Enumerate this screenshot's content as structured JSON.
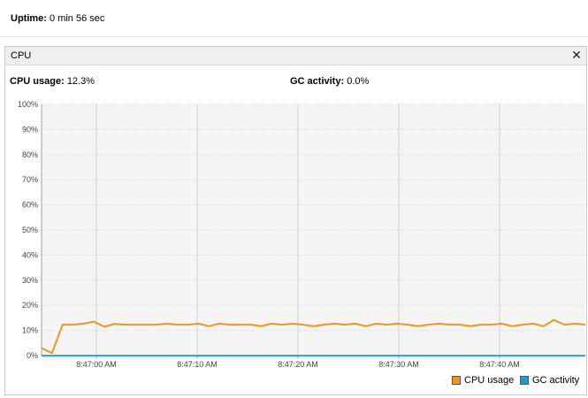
{
  "uptime": {
    "label": "Uptime:",
    "value": "0 min 56 sec"
  },
  "panel": {
    "title": "CPU",
    "close_glyph": "✕"
  },
  "metrics": {
    "cpu": {
      "label": "CPU usage:",
      "value": "12.3%"
    },
    "gc": {
      "label": "GC activity:",
      "value": "0.0%"
    }
  },
  "chart_data": {
    "type": "line",
    "ylim": [
      0,
      100
    ],
    "y_ticks": [
      "0%",
      "10%",
      "20%",
      "30%",
      "40%",
      "50%",
      "60%",
      "70%",
      "80%",
      "90%",
      "100%"
    ],
    "x_ticks": [
      "8:47:00 AM",
      "8:47:10 AM",
      "8:47:20 AM",
      "8:47:30 AM",
      "8:47:40 AM"
    ],
    "grid": true,
    "legend_position": "bottom-right",
    "series": [
      {
        "name": "CPU usage",
        "color": "#f0961e",
        "values": [
          3,
          1,
          12.3,
          12.3,
          12.7,
          13.5,
          11.5,
          12.6,
          12.3,
          12.3,
          12.3,
          12.3,
          12.7,
          12.3,
          12.3,
          12.7,
          11.7,
          12.7,
          12.3,
          12.3,
          12.3,
          11.7,
          12.7,
          12.3,
          12.7,
          12.3,
          11.7,
          12.3,
          12.7,
          12.3,
          12.7,
          11.7,
          12.7,
          12.3,
          12.7,
          12.3,
          11.7,
          12.3,
          12.7,
          12.3,
          12.3,
          11.7,
          12.3,
          12.3,
          12.7,
          11.7,
          12.3,
          12.7,
          11.7,
          14.2,
          12.3,
          12.7,
          12.3
        ]
      },
      {
        "name": "GC activity",
        "color": "#1e9bd2",
        "values": [
          0,
          0,
          0,
          0,
          0,
          0,
          0,
          0,
          0,
          0,
          0,
          0,
          0,
          0,
          0,
          0,
          0,
          0,
          0,
          0,
          0,
          0,
          0,
          0,
          0,
          0,
          0,
          0,
          0,
          0,
          0,
          0,
          0,
          0,
          0,
          0,
          0,
          0,
          0,
          0,
          0,
          0,
          0,
          0,
          0,
          0,
          0,
          0,
          0,
          0,
          0,
          0,
          0
        ]
      }
    ]
  }
}
